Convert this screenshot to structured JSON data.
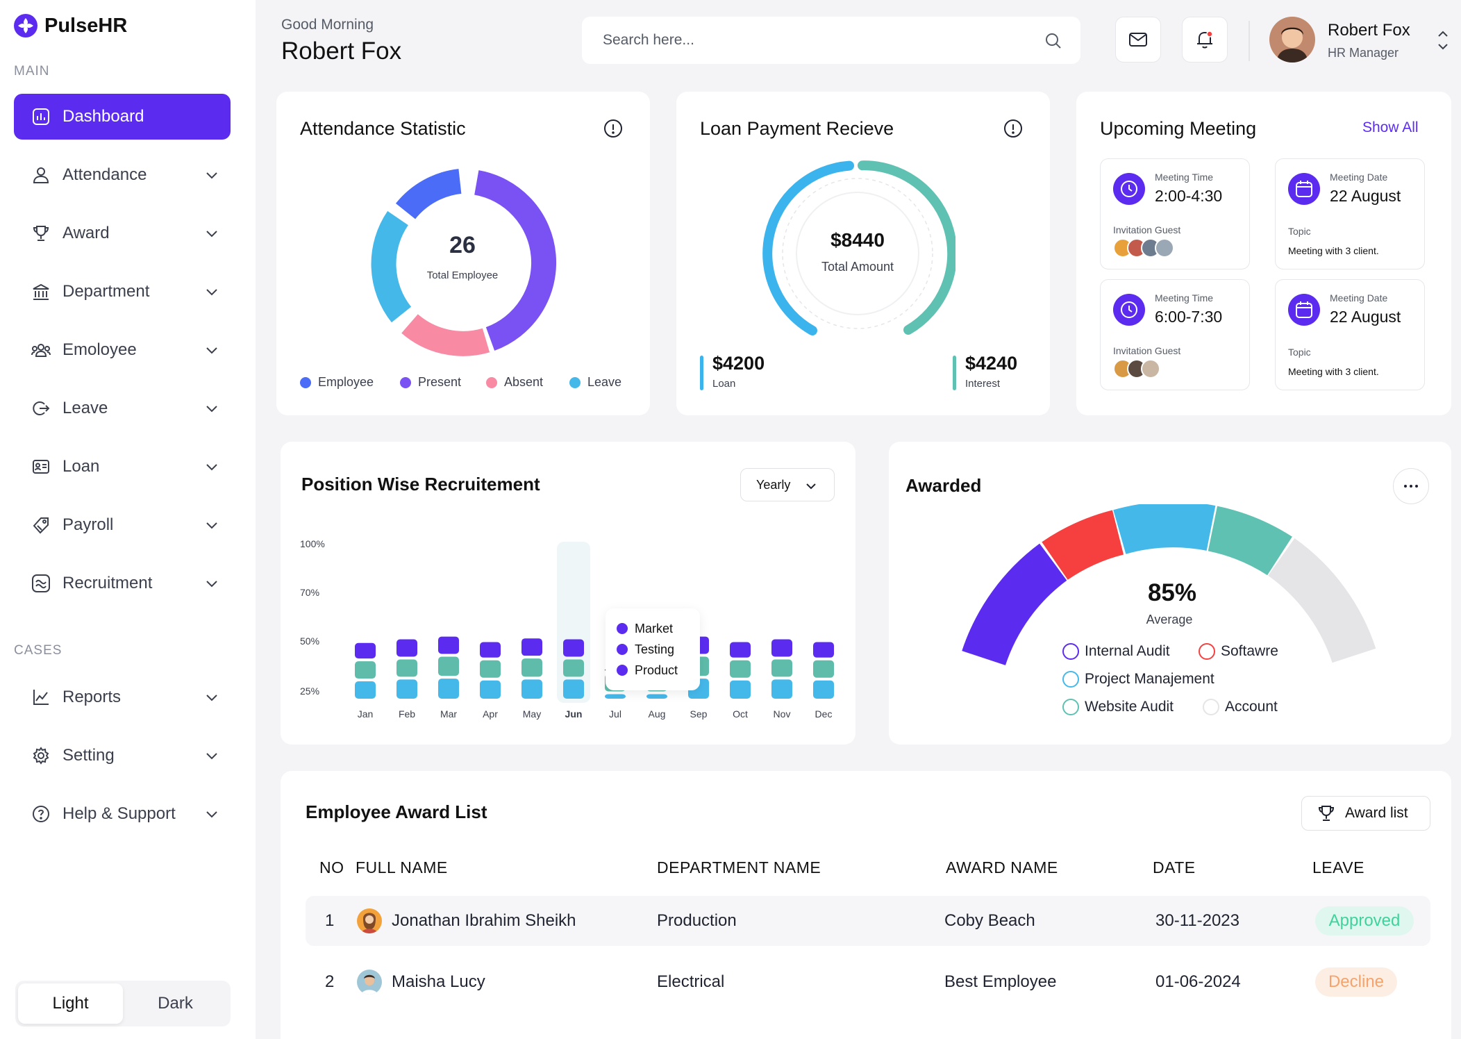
{
  "app": {
    "name": "PulseHR"
  },
  "sidebar": {
    "main_label": "MAIN",
    "cases_label": "CASES",
    "items": [
      {
        "label": "Dashboard",
        "icon": "dashboard-icon"
      },
      {
        "label": "Attendance",
        "icon": "user-icon"
      },
      {
        "label": "Award",
        "icon": "trophy-icon"
      },
      {
        "label": "Department",
        "icon": "building-icon"
      },
      {
        "label": "Emoloyee",
        "icon": "users-icon"
      },
      {
        "label": "Leave",
        "icon": "logout-icon"
      },
      {
        "label": "Loan",
        "icon": "id-card-icon"
      },
      {
        "label": "Payroll",
        "icon": "tag-icon"
      },
      {
        "label": "Recruitment",
        "icon": "recruitment-icon"
      }
    ],
    "case_items": [
      {
        "label": "Reports",
        "icon": "chart-icon"
      },
      {
        "label": "Setting",
        "icon": "gear-icon"
      },
      {
        "label": "Help & Support",
        "icon": "help-icon"
      }
    ],
    "theme": {
      "light": "Light",
      "dark": "Dark"
    }
  },
  "header": {
    "greeting": "Good Morning",
    "name": "Robert Fox",
    "search_placeholder": "Search here...",
    "user": {
      "name": "Robert Fox",
      "role": "HR Manager"
    }
  },
  "attendance": {
    "title": "Attendance Statistic",
    "total": "26",
    "total_label": "Total Employee",
    "legend": [
      {
        "label": "Employee",
        "color": "#4a6cf7"
      },
      {
        "label": "Present",
        "color": "#7a52f4"
      },
      {
        "label": "Absent",
        "color": "#f98aa3"
      },
      {
        "label": "Leave",
        "color": "#45b8ea"
      }
    ]
  },
  "loan": {
    "title": "Loan Payment Recieve",
    "total": "$8440",
    "total_label": "Total Amount",
    "loan_value": "$4200",
    "loan_label": "Loan",
    "interest_value": "$4240",
    "interest_label": "Interest",
    "colors": {
      "loan": "#3bb3ec",
      "interest": "#5fc1b2"
    }
  },
  "meetings": {
    "title": "Upcoming Meeting",
    "show_all": "Show All",
    "cards": [
      {
        "label": "Meeting Time",
        "value": "2:00-4:30",
        "sub": "Invitation Guest",
        "kind": "time"
      },
      {
        "label": "Meeting Date",
        "value": "22 August",
        "sub": "Topic",
        "topic": "Meeting with 3 client.",
        "kind": "date"
      },
      {
        "label": "Meeting Time",
        "value": "6:00-7:30",
        "sub": "Invitation Guest",
        "kind": "time"
      },
      {
        "label": "Meeting Date",
        "value": "22 August",
        "sub": "Topic",
        "topic": "Meeting with 3 client.",
        "kind": "date"
      }
    ]
  },
  "recruitment": {
    "title": "Position Wise Recruitement",
    "filter": "Yearly",
    "tooltip": [
      {
        "label": "Market",
        "color": "#5b2cf0"
      },
      {
        "label": "Testing",
        "color": "#5b2cf0"
      },
      {
        "label": "Product",
        "color": "#5b2cf0"
      }
    ]
  },
  "chart_data": {
    "type": "bar",
    "stacked": true,
    "categories": [
      "Jan",
      "Feb",
      "Mar",
      "Apr",
      "May",
      "Jun",
      "Jul",
      "Aug",
      "Sep",
      "Oct",
      "Nov",
      "Dec"
    ],
    "highlighted": "Jun",
    "y_ticks": [
      "100%",
      "70%",
      "50%",
      "25%"
    ],
    "series": [
      {
        "color": "#45b8ea",
        "values": [
          22,
          24,
          25,
          23,
          24,
          24,
          8,
          8,
          25,
          23,
          24,
          23
        ]
      },
      {
        "color": "#5fbcaa",
        "values": [
          22,
          22,
          24,
          22,
          23,
          22,
          22,
          22,
          24,
          22,
          22,
          22
        ]
      },
      {
        "color": "#5b2cf0",
        "values": [
          20,
          22,
          22,
          20,
          22,
          22,
          6,
          8,
          22,
          20,
          22,
          20
        ]
      }
    ]
  },
  "awarded": {
    "title": "Awarded",
    "percent": "85%",
    "percent_label": "Average",
    "legend": [
      {
        "label": "Internal Audit",
        "color": "#5b2cf0"
      },
      {
        "label": "Softawre",
        "color": "#f5403f"
      },
      {
        "label": "Project Manajement",
        "color": "#45b8ea"
      },
      {
        "label": "Website Audit",
        "color": "#5fc1b2"
      },
      {
        "label": "Account",
        "color": "#e5e5e7"
      }
    ]
  },
  "award_list": {
    "title": "Employee Award List",
    "button": "Award list",
    "columns": [
      "NO",
      "FULL NAME",
      "DEPARTMENT NAME",
      "AWARD NAME",
      "DATE",
      "LEAVE"
    ],
    "rows": [
      {
        "no": "1",
        "name": "Jonathan Ibrahim Sheikh",
        "department": "Production",
        "award": "Coby Beach",
        "date": "30-11-2023",
        "status": "Approved"
      },
      {
        "no": "2",
        "name": "Maisha Lucy",
        "department": "Electrical",
        "award": "Best Employee",
        "date": "01-06-2024",
        "status": "Decline"
      }
    ]
  }
}
